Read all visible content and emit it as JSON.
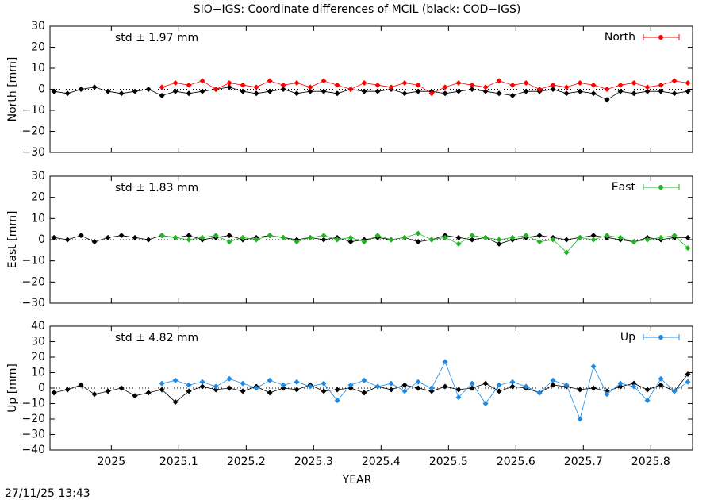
{
  "footer": "27/11/25 13:43",
  "chart_data": [
    {
      "type": "line",
      "title": "SIO−IGS: Coordinate differences of MCIL (black: COD−IGS)",
      "ylabel": "North [mm]",
      "annotation": "std ± 1.97 mm",
      "legend": "upper right",
      "zero_line": true,
      "grid": false,
      "xlim": [
        2024.909,
        2025.862
      ],
      "ylim": [
        -30,
        30
      ],
      "yticks": [
        {
          "value": -30,
          "label": "−30"
        },
        {
          "value": -20,
          "label": "−20"
        },
        {
          "value": -10,
          "label": "−10"
        },
        0,
        10,
        20,
        30
      ],
      "series": [
        {
          "color": "#000000",
          "x_start": 2024.915,
          "x_step": 0.02,
          "values": [
            -1,
            -2,
            0,
            1,
            -1,
            -2,
            -1,
            0,
            -3,
            -1,
            -2,
            -1,
            0,
            1,
            -1,
            -2,
            -1,
            0,
            -2,
            -1,
            -1,
            -2,
            0,
            -1,
            -1,
            0,
            -2,
            -1,
            -1,
            -2,
            -1,
            0,
            -1,
            -2,
            -3,
            -1,
            -1,
            0,
            -2,
            -1,
            -2,
            -5,
            -1,
            -2,
            -1,
            -1,
            -2,
            -1
          ]
        },
        {
          "name": "North",
          "color": "#ff0000",
          "x_start": 2025.075,
          "x_step": 0.02,
          "values": [
            1,
            3,
            2,
            4,
            0,
            3,
            2,
            1,
            4,
            2,
            3,
            1,
            4,
            2,
            0,
            3,
            2,
            1,
            3,
            2,
            -2,
            1,
            3,
            2,
            1,
            4,
            2,
            3,
            0,
            2,
            1,
            3,
            2,
            0,
            2,
            3,
            1,
            2,
            4,
            3
          ]
        }
      ]
    },
    {
      "type": "line",
      "ylabel": "East [mm]",
      "annotation": "std ± 1.83 mm",
      "legend": "upper right",
      "zero_line": true,
      "grid": false,
      "xlim": [
        2024.909,
        2025.862
      ],
      "ylim": [
        -30,
        30
      ],
      "yticks": [
        {
          "value": -30,
          "label": "−30"
        },
        {
          "value": -20,
          "label": "−20"
        },
        {
          "value": -10,
          "label": "−10"
        },
        0,
        10,
        20,
        30
      ],
      "series": [
        {
          "color": "#000000",
          "x_start": 2024.915,
          "x_step": 0.02,
          "values": [
            1,
            0,
            2,
            -1,
            1,
            2,
            1,
            0,
            2,
            1,
            2,
            0,
            1,
            2,
            0,
            1,
            2,
            1,
            0,
            1,
            0,
            1,
            -1,
            0,
            1,
            0,
            1,
            -1,
            0,
            2,
            1,
            0,
            1,
            -2,
            0,
            1,
            2,
            1,
            0,
            1,
            2,
            1,
            0,
            -1,
            1,
            0,
            1,
            1
          ]
        },
        {
          "name": "East",
          "color": "#22b422",
          "x_start": 2025.075,
          "x_step": 0.02,
          "values": [
            2,
            1,
            0,
            1,
            2,
            -1,
            1,
            0,
            2,
            1,
            -1,
            1,
            2,
            0,
            1,
            -1,
            2,
            0,
            1,
            3,
            0,
            1,
            -2,
            2,
            1,
            0,
            1,
            2,
            -1,
            0,
            -6,
            1,
            0,
            2,
            1,
            -1,
            0,
            1,
            2,
            -4
          ]
        }
      ]
    },
    {
      "type": "line",
      "ylabel": "Up [mm]",
      "xlabel": "YEAR",
      "annotation": "std ± 4.82 mm",
      "legend": "upper right",
      "zero_line": true,
      "grid": false,
      "xlim": [
        2024.909,
        2025.862
      ],
      "ylim": [
        -40,
        40
      ],
      "xticks": [
        2025,
        2025.1,
        2025.2,
        2025.3,
        2025.4,
        2025.5,
        2025.6,
        2025.7,
        2025.8
      ],
      "yticks": [
        {
          "value": -40,
          "label": "−40"
        },
        {
          "value": -30,
          "label": "−30"
        },
        {
          "value": -20,
          "label": "−20"
        },
        {
          "value": -10,
          "label": "−10"
        },
        0,
        10,
        20,
        30,
        40
      ],
      "series": [
        {
          "color": "#000000",
          "x_start": 2024.915,
          "x_step": 0.02,
          "values": [
            -3,
            -1,
            2,
            -4,
            -2,
            0,
            -5,
            -3,
            -1,
            -9,
            -2,
            1,
            -1,
            0,
            -2,
            1,
            -3,
            0,
            -1,
            2,
            -2,
            -1,
            0,
            -3,
            1,
            -1,
            2,
            0,
            -2,
            1,
            -1,
            0,
            3,
            -2,
            1,
            0,
            -3,
            2,
            1,
            -1,
            0,
            -2,
            1,
            3,
            -1,
            2,
            -2,
            9
          ]
        },
        {
          "name": "Up",
          "color": "#1e8ae6",
          "x_start": 2025.075,
          "x_step": 0.02,
          "values": [
            3,
            5,
            2,
            4,
            1,
            6,
            3,
            0,
            5,
            2,
            4,
            1,
            3,
            -8,
            2,
            5,
            1,
            3,
            -2,
            4,
            0,
            17,
            -6,
            3,
            -10,
            2,
            4,
            1,
            -3,
            5,
            2,
            -20,
            14,
            -4,
            3,
            1,
            -8,
            6,
            -2,
            4
          ]
        }
      ]
    }
  ]
}
